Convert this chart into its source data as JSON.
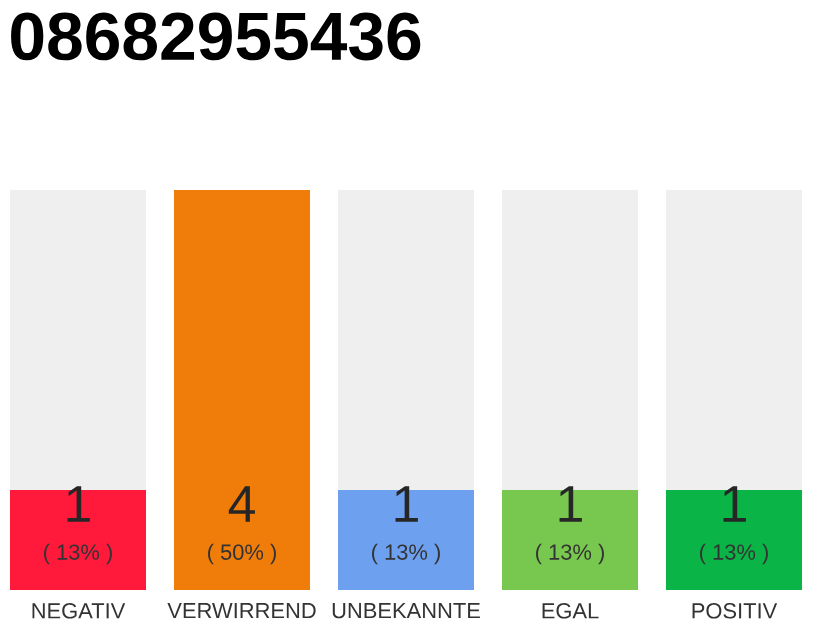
{
  "chart_data": {
    "type": "bar",
    "title": "08682955436",
    "categories": [
      "NEGATIV",
      "VERWIRREND",
      "UNBEKANNTE",
      "EGAL",
      "POSITIV"
    ],
    "values": [
      1,
      4,
      1,
      1,
      1
    ],
    "colors": [
      "#ff1a3c",
      "#f07d0a",
      "#6ea0f0",
      "#78c850",
      "#0ab446"
    ],
    "data_labels": true,
    "annotations": [
      "( 13% )",
      "( 50% )",
      "( 13% )",
      "( 13% )",
      "( 13% )"
    ]
  }
}
